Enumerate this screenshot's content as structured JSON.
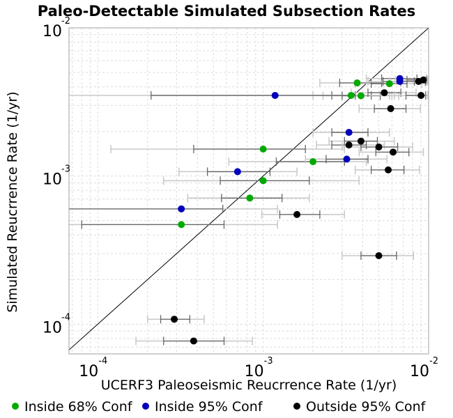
{
  "chart_data": {
    "type": "scatter",
    "title": "Paleo-Detectable Simulated Subsection Rates",
    "xlabel": "UCERF3 Paleoseismic Reucrrence Rate (1/yr)",
    "ylabel": "Simulated Reucrrence Rate (1/yr)",
    "xscale": "log",
    "yscale": "log",
    "xlim": [
      6.7e-05,
      0.01
    ],
    "ylim": [
      6.3e-05,
      0.01
    ],
    "x_ticks": [
      {
        "base": "10",
        "exp": "-4"
      },
      {
        "base": "10",
        "exp": "-3"
      },
      {
        "base": "10",
        "exp": "-2"
      }
    ],
    "y_ticks": [
      {
        "base": "10",
        "exp": "-4"
      },
      {
        "base": "10",
        "exp": "-3"
      },
      {
        "base": "10",
        "exp": "-2"
      }
    ],
    "reference_line": "y = x",
    "grid": true,
    "legend_position": "bottom",
    "series": [
      {
        "name": "Inside 68% Conf",
        "color": "#00aa00",
        "points": [
          {
            "x": 0.0037,
            "y": 0.00425,
            "lo68": 0.0029,
            "hi68": 0.0052,
            "lo95": 0.0022,
            "hi95": 0.0068
          },
          {
            "x": 0.0058,
            "y": 0.0042,
            "lo68": 0.0045,
            "hi68": 0.0074,
            "lo95": 0.0036,
            "hi95": 0.0091
          },
          {
            "x": 0.0034,
            "y": 0.0035,
            "lo68": 0.0026,
            "hi68": 0.0045,
            "lo95": 0.002,
            "hi95": 0.006
          },
          {
            "x": 0.0039,
            "y": 0.00348,
            "lo68": 0.003,
            "hi68": 0.0051,
            "lo95": 0.0023,
            "hi95": 0.0066
          },
          {
            "x": 0.001,
            "y": 0.00152,
            "lo68": 0.00038,
            "hi68": 0.0018,
            "lo95": 0.00012,
            "hi95": 0.0031
          },
          {
            "x": 0.002,
            "y": 0.00125,
            "lo68": 0.0012,
            "hi68": 0.0031,
            "lo95": 0.00062,
            "hi95": 0.0042
          },
          {
            "x": 0.001,
            "y": 0.00093,
            "lo68": 0.00055,
            "hi68": 0.0019,
            "lo95": 0.00025,
            "hi95": 0.0038
          },
          {
            "x": 0.00083,
            "y": 0.00071,
            "lo68": 0.00056,
            "hi68": 0.0013,
            "lo95": 0.00035,
            "hi95": 0.0019
          },
          {
            "x": 0.00032,
            "y": 0.00047,
            "lo68": 8e-05,
            "hi68": 0.00058,
            "lo95": 6e-05,
            "hi95": 0.00122
          }
        ]
      },
      {
        "name": "Inside 95% Conf",
        "color": "#0000bb",
        "points": [
          {
            "x": 0.0067,
            "y": 0.00455,
            "lo68": 0.0052,
            "hi68": 0.0085,
            "lo95": 0.0042,
            "hi95": 0.0097
          },
          {
            "x": 0.0067,
            "y": 0.00435,
            "lo68": 0.0053,
            "hi68": 0.0082,
            "lo95": 0.0043,
            "hi95": 0.0095
          },
          {
            "x": 0.00118,
            "y": 0.0035,
            "lo68": 0.00021,
            "hi68": 0.0036,
            "lo95": 6e-05,
            "hi95": 0.0058
          },
          {
            "x": 0.0033,
            "y": 0.00197,
            "lo68": 0.0026,
            "hi68": 0.0043,
            "lo95": 0.002,
            "hi95": 0.0058
          },
          {
            "x": 0.0032,
            "y": 0.0013,
            "lo68": 0.0024,
            "hi68": 0.0043,
            "lo95": 0.0018,
            "hi95": 0.0056
          },
          {
            "x": 0.0007,
            "y": 0.00107,
            "lo68": 0.00046,
            "hi68": 0.0011,
            "lo95": 0.00031,
            "hi95": 0.0016
          },
          {
            "x": 0.00032,
            "y": 0.0006,
            "lo68": 6e-05,
            "hi68": 0.00057,
            "lo95": 6e-05,
            "hi95": 0.00122
          }
        ]
      },
      {
        "name": "Outside 95% Conf",
        "color": "#000000",
        "points": [
          {
            "x": 0.0093,
            "y": 0.00445,
            "lo68": 0.0074,
            "hi68": 0.0097,
            "lo95": 0.0063,
            "hi95": 0.0099
          },
          {
            "x": 0.0087,
            "y": 0.00435,
            "lo68": 0.0068,
            "hi68": 0.0096,
            "lo95": 0.0058,
            "hi95": 0.0099
          },
          {
            "x": 0.0054,
            "y": 0.00365,
            "lo68": 0.0043,
            "hi68": 0.0068,
            "lo95": 0.0034,
            "hi95": 0.0084
          },
          {
            "x": 0.009,
            "y": 0.0035,
            "lo68": 0.0073,
            "hi68": 0.0096,
            "lo95": 0.0062,
            "hi95": 0.0099
          },
          {
            "x": 0.0059,
            "y": 0.00285,
            "lo68": 0.0047,
            "hi68": 0.0073,
            "lo95": 0.0038,
            "hi95": 0.0089
          },
          {
            "x": 0.0039,
            "y": 0.00172,
            "lo68": 0.0031,
            "hi68": 0.0049,
            "lo95": 0.0025,
            "hi95": 0.0062
          },
          {
            "x": 0.0033,
            "y": 0.00162,
            "lo68": 0.0026,
            "hi68": 0.0042,
            "lo95": 0.0021,
            "hi95": 0.0054
          },
          {
            "x": 0.005,
            "y": 0.00157,
            "lo68": 0.0039,
            "hi68": 0.0065,
            "lo95": 0.003,
            "hi95": 0.008
          },
          {
            "x": 0.0061,
            "y": 0.00145,
            "lo68": 0.0048,
            "hi68": 0.0076,
            "lo95": 0.0038,
            "hi95": 0.0093
          },
          {
            "x": 0.0057,
            "y": 0.0011,
            "lo68": 0.0045,
            "hi68": 0.0071,
            "lo95": 0.0036,
            "hi95": 0.0088
          },
          {
            "x": 0.0016,
            "y": 0.00055,
            "lo68": 0.00126,
            "hi68": 0.0022,
            "lo95": 0.00098,
            "hi95": 0.0031
          },
          {
            "x": 0.005,
            "y": 0.00029,
            "lo68": 0.0039,
            "hi68": 0.0064,
            "lo95": 0.003,
            "hi95": 0.0081
          },
          {
            "x": 0.00029,
            "y": 0.000108,
            "lo68": 0.00024,
            "hi68": 0.00036,
            "lo95": 0.0002,
            "hi95": 0.00044
          },
          {
            "x": 0.00038,
            "y": 7.7e-05,
            "lo68": 0.00025,
            "hi68": 0.00058,
            "lo95": 0.00017,
            "hi95": 0.00086
          }
        ]
      }
    ]
  }
}
